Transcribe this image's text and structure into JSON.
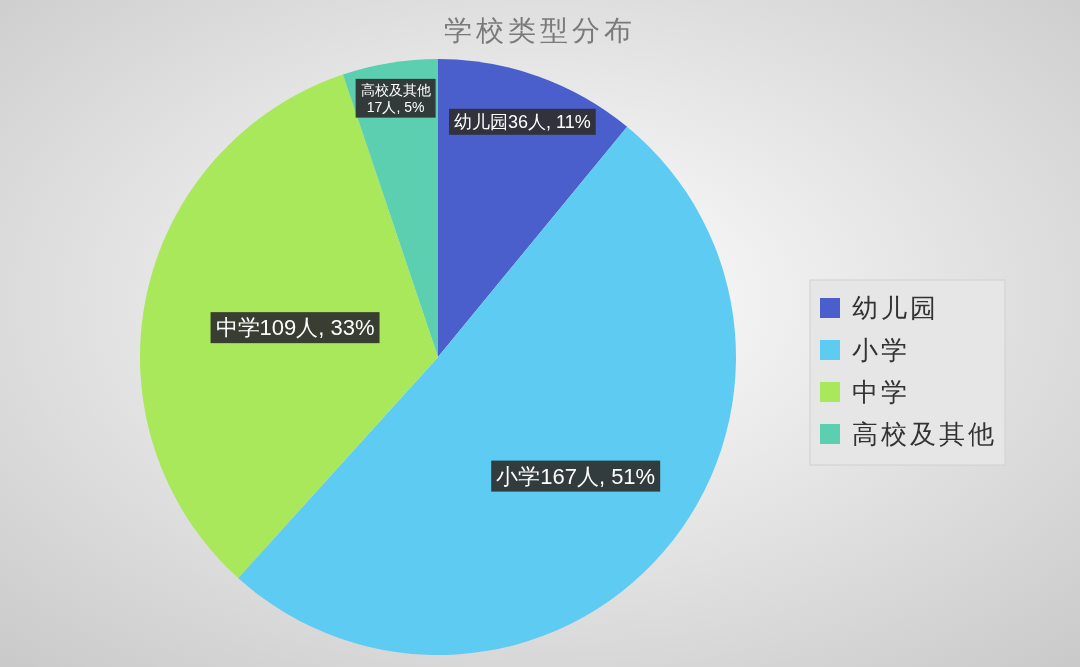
{
  "chart_data": {
    "type": "pie",
    "title": "学校类型分布",
    "categories": [
      "幼儿园",
      "小学",
      "中学",
      "高校及其他"
    ],
    "values": [
      36,
      167,
      109,
      17
    ],
    "colors": [
      "#4a5fcb",
      "#5ecbf2",
      "#a8e85a",
      "#5ccfb0"
    ],
    "value_labels": [
      "幼儿园36人, 11%",
      "小学167人, 51%",
      "中学109人, 33%",
      "高校及其他\n17人, 5%"
    ],
    "legend": "right"
  }
}
